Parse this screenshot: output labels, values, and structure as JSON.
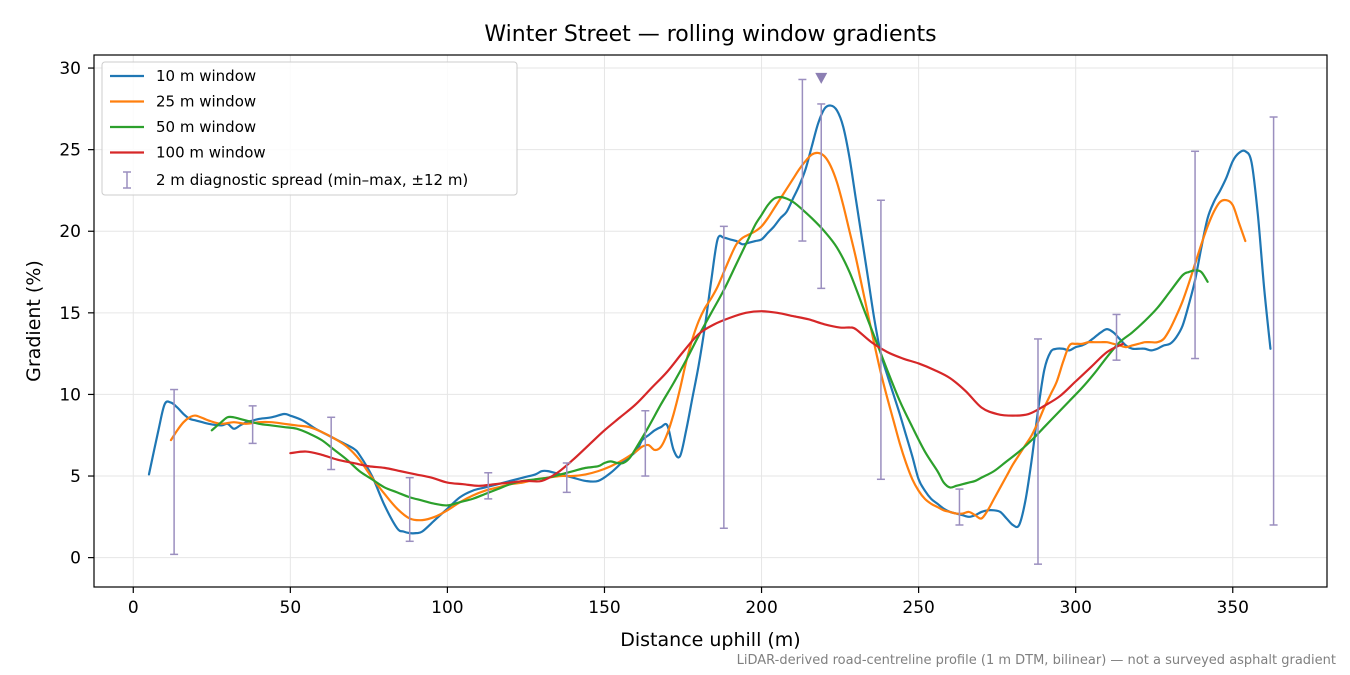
{
  "chart_data": {
    "type": "line",
    "title": "Winter Street — rolling window gradients",
    "xlabel": "Distance uphill (m)",
    "ylabel": "Gradient (%)",
    "xlim": [
      -12.5,
      380
    ],
    "ylim": [
      -1.8,
      30.8
    ],
    "xticks": [
      0,
      50,
      100,
      150,
      200,
      250,
      300,
      350
    ],
    "yticks": [
      0,
      5,
      10,
      15,
      20,
      25,
      30
    ],
    "grid": true,
    "legend_position": "top-left",
    "footnote": "LiDAR-derived road-centreline profile (1 m DTM, bilinear) — not a surveyed asphalt gradient",
    "series": [
      {
        "name": "10 m window",
        "color": "#1f77b4",
        "x": [
          5,
          8,
          10,
          12,
          14,
          16,
          18,
          20,
          24,
          28,
          30,
          32,
          34,
          36,
          38,
          40,
          44,
          48,
          50,
          54,
          58,
          62,
          66,
          70,
          72,
          76,
          80,
          84,
          86,
          88,
          90,
          92,
          96,
          100,
          104,
          108,
          112,
          118,
          124,
          128,
          130,
          132,
          136,
          140,
          144,
          148,
          152,
          156,
          160,
          162,
          164,
          166,
          168,
          170,
          172,
          174,
          176,
          178,
          180,
          182,
          184,
          186,
          188,
          190,
          192,
          194,
          196,
          198,
          200,
          202,
          204,
          206,
          208,
          210,
          212,
          214,
          216,
          218,
          220,
          222,
          224,
          226,
          228,
          230,
          232,
          234,
          236,
          238,
          240,
          242,
          244,
          246,
          248,
          250,
          252,
          254,
          256,
          258,
          260,
          262,
          264,
          266,
          268,
          270,
          272,
          274,
          276,
          278,
          280,
          282,
          284,
          286,
          288,
          290,
          292,
          294,
          296,
          298,
          300,
          302,
          304,
          306,
          308,
          310,
          312,
          314,
          316,
          318,
          320,
          322,
          324,
          326,
          328,
          330,
          332,
          334,
          336,
          338,
          340,
          342,
          344,
          346,
          348,
          350,
          352,
          354,
          356,
          358,
          360,
          362
        ],
        "y": [
          5.1,
          7.8,
          9.4,
          9.5,
          9.2,
          8.8,
          8.5,
          8.4,
          8.2,
          8.1,
          8.2,
          7.9,
          8.1,
          8.3,
          8.4,
          8.5,
          8.6,
          8.8,
          8.7,
          8.4,
          7.9,
          7.5,
          7.1,
          6.7,
          6.3,
          5.0,
          3.2,
          1.8,
          1.6,
          1.5,
          1.5,
          1.6,
          2.3,
          3.0,
          3.7,
          4.1,
          4.3,
          4.6,
          4.9,
          5.1,
          5.3,
          5.3,
          5.1,
          4.9,
          4.7,
          4.7,
          5.2,
          5.9,
          6.5,
          7.2,
          7.5,
          7.8,
          8.0,
          8.1,
          6.6,
          6.2,
          7.8,
          9.8,
          11.8,
          14.2,
          17.0,
          19.5,
          19.6,
          19.5,
          19.4,
          19.2,
          19.3,
          19.4,
          19.5,
          19.9,
          20.3,
          20.8,
          21.2,
          22.0,
          22.8,
          23.8,
          25.2,
          26.6,
          27.5,
          27.7,
          27.4,
          26.4,
          24.5,
          22.0,
          19.5,
          17.0,
          14.5,
          12.5,
          11.2,
          10.0,
          8.8,
          7.5,
          6.2,
          4.8,
          4.1,
          3.6,
          3.3,
          3.0,
          2.8,
          2.7,
          2.6,
          2.5,
          2.6,
          2.8,
          2.9,
          2.9,
          2.8,
          2.4,
          2.0,
          2.0,
          3.5,
          6.0,
          9.0,
          11.5,
          12.6,
          12.8,
          12.8,
          12.7,
          12.9,
          13.0,
          13.2,
          13.5,
          13.8,
          14.0,
          13.8,
          13.4,
          13.0,
          12.8,
          12.8,
          12.8,
          12.7,
          12.8,
          13.0,
          13.1,
          13.5,
          14.2,
          15.5,
          17.0,
          19.0,
          20.8,
          21.8,
          22.5,
          23.3,
          24.3,
          24.8,
          24.9,
          24.2,
          21.0,
          16.5,
          12.8
        ]
      },
      {
        "name": "25 m window",
        "color": "#ff7f0e",
        "x": [
          12,
          14,
          16,
          18,
          20,
          24,
          28,
          32,
          36,
          40,
          44,
          48,
          52,
          56,
          60,
          64,
          68,
          72,
          76,
          80,
          84,
          88,
          92,
          96,
          100,
          104,
          108,
          112,
          116,
          120,
          124,
          128,
          132,
          136,
          140,
          144,
          148,
          152,
          156,
          160,
          162,
          164,
          166,
          168,
          170,
          172,
          174,
          176,
          178,
          180,
          182,
          184,
          186,
          188,
          190,
          192,
          194,
          196,
          198,
          200,
          202,
          204,
          206,
          208,
          210,
          212,
          214,
          216,
          218,
          220,
          222,
          224,
          226,
          228,
          230,
          232,
          234,
          236,
          238,
          240,
          242,
          244,
          246,
          248,
          250,
          252,
          254,
          256,
          258,
          260,
          262,
          264,
          266,
          268,
          270,
          272,
          274,
          276,
          278,
          280,
          282,
          284,
          286,
          288,
          290,
          292,
          294,
          296,
          298,
          300,
          302,
          304,
          306,
          308,
          310,
          312,
          314,
          316,
          318,
          320,
          322,
          324,
          326,
          328,
          330,
          332,
          334,
          336,
          338,
          340,
          342,
          344,
          346,
          348,
          350,
          352,
          354
        ],
        "y": [
          7.2,
          7.8,
          8.3,
          8.6,
          8.7,
          8.4,
          8.2,
          8.3,
          8.2,
          8.3,
          8.3,
          8.2,
          8.1,
          8.0,
          7.7,
          7.3,
          6.8,
          6.0,
          4.9,
          3.9,
          3.0,
          2.4,
          2.3,
          2.5,
          2.9,
          3.4,
          3.8,
          4.1,
          4.3,
          4.5,
          4.6,
          4.8,
          4.9,
          5.0,
          5.0,
          5.1,
          5.3,
          5.6,
          6.0,
          6.5,
          6.8,
          6.9,
          6.6,
          6.8,
          7.6,
          8.8,
          10.3,
          12.0,
          13.4,
          14.5,
          15.3,
          15.9,
          16.6,
          17.5,
          18.4,
          19.2,
          19.6,
          19.8,
          20.0,
          20.3,
          20.8,
          21.4,
          22.0,
          22.6,
          23.2,
          23.8,
          24.3,
          24.7,
          24.8,
          24.6,
          24.0,
          23.0,
          21.6,
          20.0,
          18.4,
          16.6,
          14.8,
          13.0,
          11.3,
          9.8,
          8.4,
          7.0,
          5.8,
          4.8,
          4.1,
          3.6,
          3.3,
          3.1,
          2.9,
          2.8,
          2.7,
          2.7,
          2.8,
          2.6,
          2.4,
          2.9,
          3.6,
          4.3,
          5.0,
          5.7,
          6.3,
          6.9,
          7.5,
          8.3,
          9.2,
          10.0,
          10.8,
          12.0,
          13.0,
          13.1,
          13.1,
          13.2,
          13.2,
          13.2,
          13.2,
          13.1,
          13.0,
          12.9,
          13.0,
          13.1,
          13.2,
          13.2,
          13.2,
          13.4,
          14.0,
          14.8,
          15.7,
          16.8,
          18.0,
          19.2,
          20.3,
          21.2,
          21.8,
          21.9,
          21.6,
          20.5,
          19.4
        ]
      },
      {
        "name": "50 m window",
        "color": "#2ca02c",
        "x": [
          25,
          28,
          30,
          32,
          34,
          36,
          40,
          44,
          48,
          52,
          56,
          60,
          64,
          68,
          72,
          76,
          80,
          84,
          88,
          92,
          96,
          100,
          104,
          108,
          112,
          116,
          120,
          124,
          128,
          132,
          136,
          140,
          144,
          148,
          150,
          152,
          154,
          156,
          158,
          160,
          164,
          168,
          172,
          176,
          180,
          184,
          188,
          192,
          196,
          198,
          200,
          202,
          204,
          206,
          208,
          210,
          212,
          216,
          220,
          224,
          228,
          232,
          236,
          240,
          244,
          248,
          252,
          256,
          258,
          260,
          262,
          264,
          266,
          268,
          270,
          274,
          278,
          282,
          286,
          290,
          294,
          298,
          302,
          306,
          310,
          314,
          318,
          322,
          326,
          330,
          334,
          336,
          338,
          340,
          342
        ],
        "y": [
          7.8,
          8.3,
          8.6,
          8.6,
          8.5,
          8.4,
          8.2,
          8.1,
          8.0,
          7.9,
          7.6,
          7.2,
          6.6,
          6.0,
          5.3,
          4.8,
          4.3,
          4.0,
          3.7,
          3.5,
          3.3,
          3.2,
          3.4,
          3.6,
          3.9,
          4.2,
          4.5,
          4.7,
          4.8,
          4.9,
          5.1,
          5.3,
          5.5,
          5.6,
          5.8,
          5.9,
          5.8,
          5.8,
          6.1,
          6.7,
          8.0,
          9.4,
          10.7,
          12.1,
          13.6,
          15.0,
          16.4,
          18.0,
          19.6,
          20.4,
          21.0,
          21.6,
          22.0,
          22.1,
          22.0,
          21.8,
          21.5,
          20.8,
          20.0,
          19.0,
          17.5,
          15.5,
          13.5,
          11.5,
          9.6,
          8.0,
          6.5,
          5.3,
          4.6,
          4.3,
          4.4,
          4.5,
          4.6,
          4.7,
          4.9,
          5.3,
          5.9,
          6.5,
          7.2,
          8.0,
          8.8,
          9.6,
          10.4,
          11.3,
          12.3,
          13.2,
          13.8,
          14.5,
          15.3,
          16.3,
          17.3,
          17.5,
          17.6,
          17.5,
          16.9
        ]
      },
      {
        "name": "100 m window",
        "color": "#d62728",
        "x": [
          50,
          55,
          60,
          65,
          70,
          75,
          80,
          85,
          90,
          95,
          100,
          105,
          110,
          115,
          120,
          125,
          130,
          135,
          140,
          145,
          150,
          155,
          160,
          165,
          170,
          175,
          180,
          185,
          190,
          195,
          200,
          205,
          210,
          215,
          220,
          225,
          228,
          230,
          235,
          240,
          245,
          250,
          255,
          260,
          265,
          270,
          275,
          280,
          285,
          290,
          295,
          300,
          305,
          310,
          315
        ],
        "y": [
          6.4,
          6.5,
          6.3,
          6.0,
          5.8,
          5.6,
          5.5,
          5.3,
          5.1,
          4.9,
          4.6,
          4.5,
          4.4,
          4.5,
          4.6,
          4.7,
          4.7,
          5.2,
          6.0,
          6.9,
          7.8,
          8.6,
          9.4,
          10.4,
          11.4,
          12.6,
          13.7,
          14.3,
          14.7,
          15.0,
          15.1,
          15.0,
          14.8,
          14.6,
          14.3,
          14.1,
          14.1,
          14.0,
          13.2,
          12.6,
          12.2,
          11.9,
          11.5,
          11.0,
          10.2,
          9.2,
          8.8,
          8.7,
          8.8,
          9.3,
          9.9,
          10.8,
          11.7,
          12.6,
          13.1
        ]
      }
    ],
    "errorbars": {
      "name": "2 m diagnostic spread (min–max, ±12 m)",
      "color": "#9b8fbf",
      "x": [
        13,
        38,
        63,
        88,
        113,
        138,
        163,
        188,
        213,
        219,
        238,
        263,
        288,
        313,
        338,
        363
      ],
      "lower": [
        0.2,
        7.0,
        5.4,
        1.0,
        3.6,
        4.0,
        5.0,
        1.8,
        19.4,
        16.5,
        4.8,
        2.0,
        -0.4,
        12.1,
        12.2,
        2.0
      ],
      "upper": [
        10.3,
        9.3,
        8.6,
        4.9,
        5.2,
        5.8,
        9.0,
        20.3,
        29.3,
        27.8,
        21.9,
        4.2,
        13.4,
        14.9,
        24.9,
        27.0
      ]
    },
    "peak_marker": {
      "x": 219,
      "y": 29.4,
      "color": "#8c7fb3"
    }
  }
}
